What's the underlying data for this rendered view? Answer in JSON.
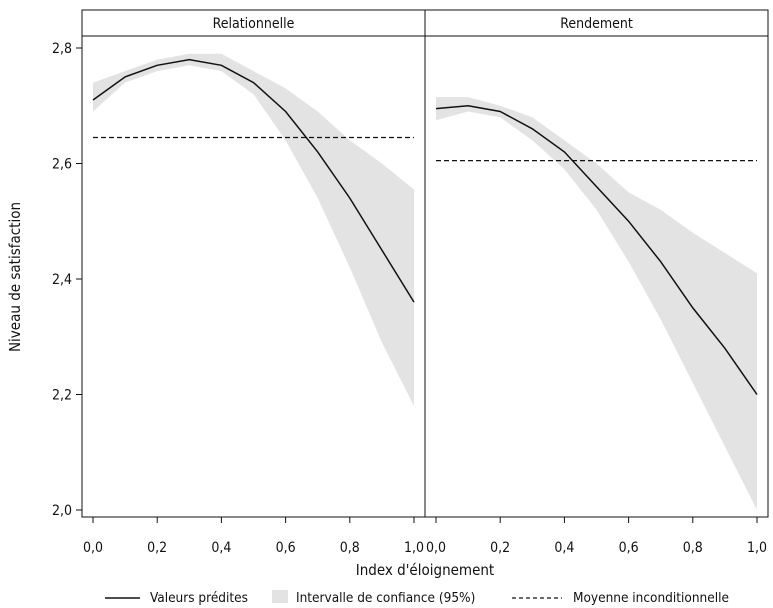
{
  "chart_data": {
    "type": "line",
    "xlabel": "Index d'éloignement",
    "ylabel": "Niveau de satisfaction",
    "xlim": [
      0,
      1
    ],
    "ylim": [
      2.0,
      2.8
    ],
    "x_ticks": [
      "0,0",
      "0,2",
      "0,4",
      "0,6",
      "0,8",
      "1,0"
    ],
    "y_ticks": [
      "2,0",
      "2,2",
      "2,4",
      "2,6",
      "2,8"
    ],
    "y_tick_values": [
      2.0,
      2.2,
      2.4,
      2.6,
      2.8
    ],
    "x_tick_values": [
      0,
      0.2,
      0.4,
      0.6,
      0.8,
      1.0
    ],
    "grid": false,
    "legend_position": "bottom",
    "colors": {
      "line": "#111111",
      "band": "#e3e3e3",
      "mean": "#111111"
    },
    "legend": [
      {
        "key": "predicted",
        "label": "Valeurs prédites"
      },
      {
        "key": "ci",
        "label": "Intervalle de confiance (95%)"
      },
      {
        "key": "mean",
        "label": "Moyenne inconditionnelle"
      }
    ],
    "panels": [
      {
        "title": "Relationnelle",
        "mean": 2.645,
        "x": [
          0,
          0.1,
          0.2,
          0.3,
          0.4,
          0.5,
          0.6,
          0.7,
          0.8,
          0.9,
          1.0
        ],
        "predicted": [
          2.71,
          2.75,
          2.77,
          2.78,
          2.77,
          2.74,
          2.69,
          2.62,
          2.54,
          2.45,
          2.36
        ],
        "ci_lower": [
          2.69,
          2.74,
          2.76,
          2.77,
          2.76,
          2.72,
          2.64,
          2.54,
          2.42,
          2.29,
          2.18
        ],
        "ci_upper": [
          2.74,
          2.76,
          2.78,
          2.79,
          2.79,
          2.76,
          2.73,
          2.69,
          2.64,
          2.6,
          2.555
        ]
      },
      {
        "title": "Rendement",
        "mean": 2.605,
        "x": [
          0,
          0.1,
          0.2,
          0.3,
          0.4,
          0.5,
          0.6,
          0.7,
          0.8,
          0.9,
          1.0
        ],
        "predicted": [
          2.695,
          2.7,
          2.69,
          2.66,
          2.62,
          2.56,
          2.5,
          2.43,
          2.35,
          2.28,
          2.2
        ],
        "ci_lower": [
          2.675,
          2.69,
          2.68,
          2.64,
          2.59,
          2.52,
          2.43,
          2.33,
          2.22,
          2.11,
          2.0
        ],
        "ci_upper": [
          2.715,
          2.715,
          2.7,
          2.68,
          2.64,
          2.6,
          2.55,
          2.52,
          2.48,
          2.445,
          2.41
        ]
      }
    ]
  }
}
